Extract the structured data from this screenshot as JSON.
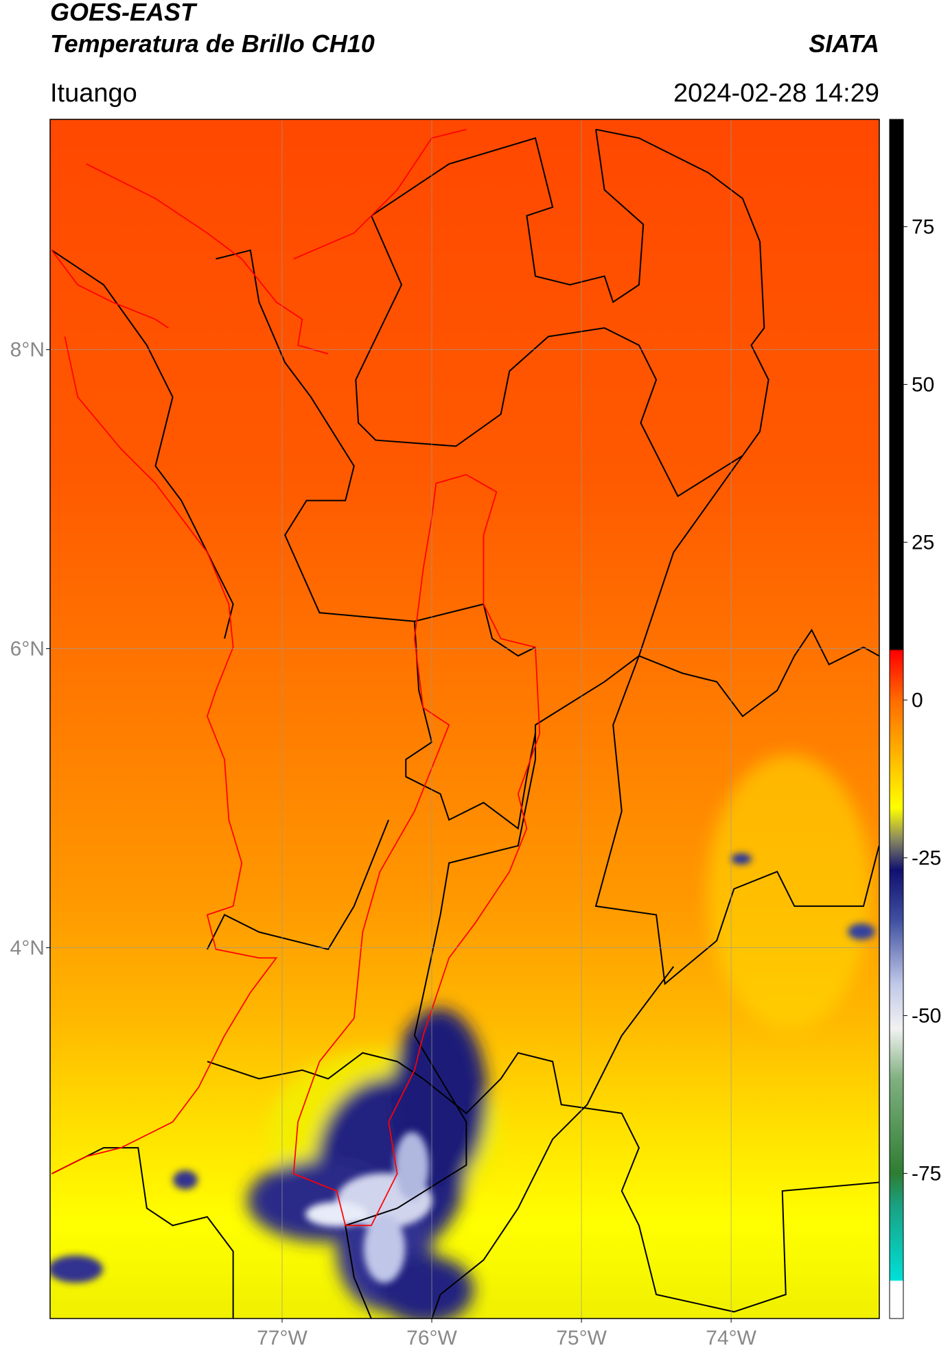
{
  "chart_data": {
    "type": "map",
    "title": "GOES-EAST",
    "subtitle": "Temperatura de Brillo CH10",
    "source": "SIATA",
    "region": "Ituango",
    "datetime": "2024-02-28 14:29",
    "xlim": [
      -78.55,
      -73.01
    ],
    "ylim": [
      1.52,
      9.54
    ],
    "xticks": [
      {
        "value": -77,
        "label": "77°W"
      },
      {
        "value": -76,
        "label": "76°W"
      },
      {
        "value": -75,
        "label": "75°W"
      },
      {
        "value": -74,
        "label": "74°W"
      }
    ],
    "yticks": [
      {
        "value": 8,
        "label": "8°N"
      },
      {
        "value": 6,
        "label": "6°N"
      },
      {
        "value": 4,
        "label": "4°N"
      }
    ],
    "grid": true,
    "colorbar": {
      "clim": [
        -98,
        92
      ],
      "ticks": [
        75,
        50,
        25,
        0,
        -25,
        -50,
        -75
      ]
    }
  }
}
